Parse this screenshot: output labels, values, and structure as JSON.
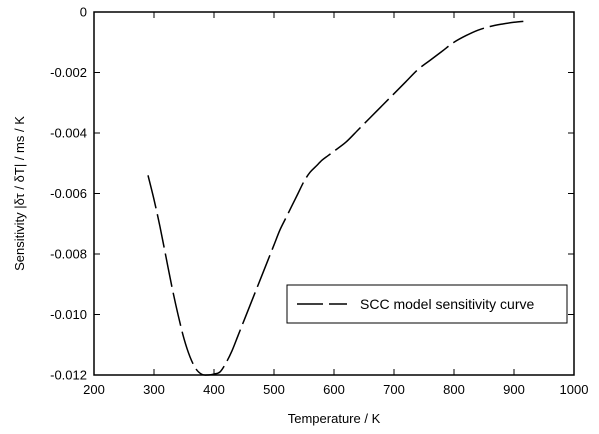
{
  "chart_data": {
    "type": "line",
    "xlabel": "Temperature / K",
    "ylabel": "Sensitivity |δτ / δT| / ms / K",
    "xlim": [
      200,
      1000
    ],
    "ylim": [
      -0.012,
      0
    ],
    "grid": false,
    "legend_position": "lower-right",
    "xticks": [
      {
        "value": 200,
        "label": "200"
      },
      {
        "value": 300,
        "label": "300"
      },
      {
        "value": 400,
        "label": "400"
      },
      {
        "value": 500,
        "label": "500"
      },
      {
        "value": 600,
        "label": "600"
      },
      {
        "value": 700,
        "label": "700"
      },
      {
        "value": 800,
        "label": "800"
      },
      {
        "value": 900,
        "label": "900"
      },
      {
        "value": 1000,
        "label": "1000"
      }
    ],
    "yticks": [
      {
        "value": 0,
        "label": "0"
      },
      {
        "value": -0.002,
        "label": "-0.002"
      },
      {
        "value": -0.004,
        "label": "-0.004"
      },
      {
        "value": -0.006,
        "label": "-0.006"
      },
      {
        "value": -0.008,
        "label": "-0.008"
      },
      {
        "value": -0.01,
        "label": "-0.010"
      },
      {
        "value": -0.012,
        "label": "-0.012"
      }
    ],
    "series": [
      {
        "name": "SCC model sensitivity curve",
        "color": "#000000",
        "line_style": "long-dash",
        "x": [
          290,
          300,
          310,
          320,
          330,
          340,
          350,
          360,
          370,
          380,
          390,
          400,
          410,
          420,
          430,
          440,
          450,
          460,
          470,
          480,
          490,
          500,
          510,
          520,
          530,
          540,
          550,
          560,
          570,
          580,
          590,
          600,
          620,
          640,
          660,
          680,
          700,
          720,
          740,
          760,
          780,
          800,
          820,
          840,
          860,
          880,
          900,
          920
        ],
        "y": [
          -0.0054,
          -0.0062,
          -0.0071,
          -0.0081,
          -0.0091,
          -0.01,
          -0.0108,
          -0.0114,
          -0.0118,
          -0.01198,
          -0.012,
          -0.01197,
          -0.0119,
          -0.0116,
          -0.0112,
          -0.0107,
          -0.0102,
          -0.0097,
          -0.0092,
          -0.0087,
          -0.0082,
          -0.0077,
          -0.0072,
          -0.0068,
          -0.0064,
          -0.006,
          -0.0056,
          -0.0053,
          -0.0051,
          -0.0049,
          -0.00475,
          -0.0046,
          -0.0043,
          -0.0039,
          -0.0035,
          -0.0031,
          -0.0027,
          -0.0023,
          -0.0019,
          -0.0016,
          -0.0013,
          -0.001,
          -0.00078,
          -0.0006,
          -0.00048,
          -0.0004,
          -0.00034,
          -0.0003
        ]
      }
    ]
  }
}
